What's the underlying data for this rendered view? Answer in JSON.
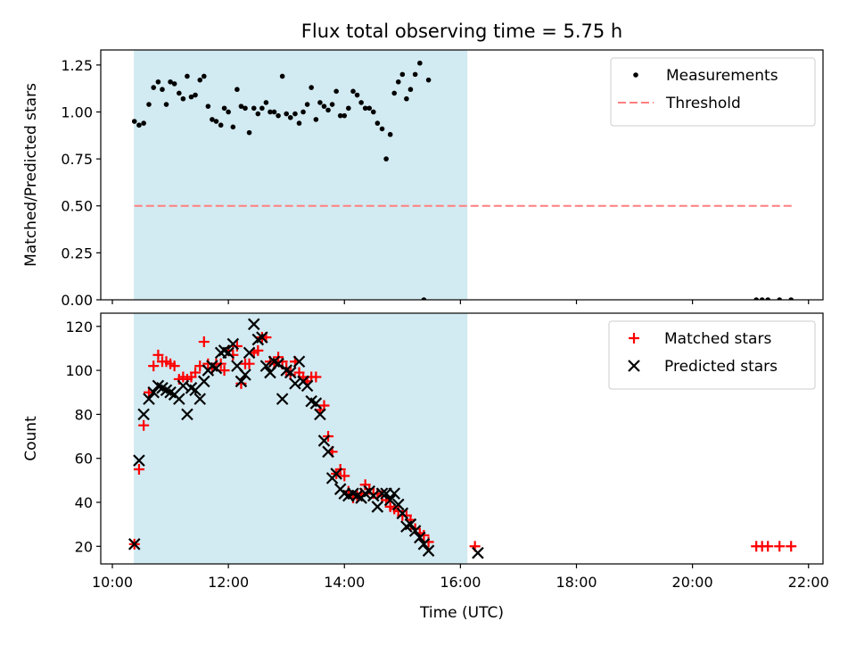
{
  "chart_data": {
    "type": "scatter",
    "title": "Flux total observing time = 5.75 h",
    "xlabel": "Time (UTC)",
    "shared_x": {
      "ticks": [
        10,
        12,
        14,
        16,
        18,
        20,
        22
      ],
      "tick_labels": [
        "10:00",
        "12:00",
        "14:00",
        "16:00",
        "18:00",
        "20:00",
        "22:00"
      ],
      "xlim": [
        9.8,
        22.25
      ]
    },
    "observing_window": {
      "start": 10.37,
      "end": 16.12,
      "color": "#add8e6"
    },
    "panels": [
      {
        "ylabel": "Matched/Predicted stars",
        "ylim": [
          0,
          1.33
        ],
        "yticks": [
          0.0,
          0.25,
          0.5,
          0.75,
          1.0,
          1.25
        ],
        "ytick_labels": [
          "0.00",
          "0.25",
          "0.50",
          "0.75",
          "1.00",
          "1.25"
        ],
        "legend_position": "top-right",
        "series": [
          {
            "name": "Measurements",
            "marker": "dot",
            "color": "#000000",
            "points": [
              [
                10.38,
                0.95
              ],
              [
                10.46,
                0.93
              ],
              [
                10.54,
                0.94
              ],
              [
                10.63,
                1.04
              ],
              [
                10.71,
                1.13
              ],
              [
                10.79,
                1.16
              ],
              [
                10.86,
                1.12
              ],
              [
                10.93,
                1.04
              ],
              [
                11.0,
                1.16
              ],
              [
                11.07,
                1.15
              ],
              [
                11.15,
                1.1
              ],
              [
                11.22,
                1.07
              ],
              [
                11.29,
                1.19
              ],
              [
                11.36,
                1.08
              ],
              [
                11.43,
                1.09
              ],
              [
                11.51,
                1.17
              ],
              [
                11.58,
                1.19
              ],
              [
                11.65,
                1.03
              ],
              [
                11.72,
                0.96
              ],
              [
                11.79,
                0.95
              ],
              [
                11.87,
                0.93
              ],
              [
                11.93,
                1.02
              ],
              [
                12.0,
                1.0
              ],
              [
                12.08,
                0.92
              ],
              [
                12.15,
                1.12
              ],
              [
                12.22,
                1.03
              ],
              [
                12.29,
                1.02
              ],
              [
                12.36,
                0.89
              ],
              [
                12.44,
                1.02
              ],
              [
                12.51,
                0.99
              ],
              [
                12.58,
                1.02
              ],
              [
                12.65,
                1.05
              ],
              [
                12.72,
                1.0
              ],
              [
                12.79,
                1.0
              ],
              [
                12.86,
                0.98
              ],
              [
                12.93,
                1.19
              ],
              [
                13.0,
                0.99
              ],
              [
                13.07,
                0.97
              ],
              [
                13.15,
                0.99
              ],
              [
                13.22,
                0.94
              ],
              [
                13.29,
                1.0
              ],
              [
                13.36,
                1.04
              ],
              [
                13.43,
                1.13
              ],
              [
                13.51,
                0.96
              ],
              [
                13.58,
                1.05
              ],
              [
                13.65,
                1.03
              ],
              [
                13.72,
                1.01
              ],
              [
                13.79,
                1.04
              ],
              [
                13.86,
                1.11
              ],
              [
                13.93,
                0.98
              ],
              [
                14.0,
                0.98
              ],
              [
                14.07,
                1.02
              ],
              [
                14.15,
                1.11
              ],
              [
                14.22,
                1.09
              ],
              [
                14.29,
                1.05
              ],
              [
                14.36,
                1.02
              ],
              [
                14.43,
                1.02
              ],
              [
                14.5,
                1.0
              ],
              [
                14.57,
                0.94
              ],
              [
                14.65,
                0.91
              ],
              [
                14.72,
                0.75
              ],
              [
                14.79,
                0.88
              ],
              [
                14.86,
                1.1
              ],
              [
                14.93,
                1.16
              ],
              [
                15.0,
                1.2
              ],
              [
                15.07,
                1.07
              ],
              [
                15.14,
                1.12
              ],
              [
                15.22,
                1.2
              ],
              [
                15.3,
                1.26
              ],
              [
                15.37,
                0.0
              ],
              [
                15.45,
                1.17
              ],
              [
                21.1,
                0.0
              ],
              [
                21.2,
                0.0
              ],
              [
                21.3,
                0.0
              ],
              [
                21.5,
                0.0
              ],
              [
                21.7,
                0.0
              ]
            ]
          },
          {
            "name": "Threshold",
            "marker": "dashed-line",
            "color": "#ff7f7f",
            "x": [
              10.38,
              21.72
            ],
            "y": [
              0.5,
              0.5
            ]
          }
        ]
      },
      {
        "ylabel": "Count",
        "ylim": [
          12,
          126
        ],
        "yticks": [
          20,
          40,
          60,
          80,
          100,
          120
        ],
        "ytick_labels": [
          "20",
          "40",
          "60",
          "80",
          "100",
          "120"
        ],
        "legend_position": "top-right",
        "series": [
          {
            "name": "Matched stars",
            "marker": "plus",
            "color": "#ff0000",
            "points": [
              [
                10.38,
                21
              ],
              [
                10.46,
                55
              ],
              [
                10.54,
                75
              ],
              [
                10.63,
                90
              ],
              [
                10.71,
                102
              ],
              [
                10.79,
                107
              ],
              [
                10.86,
                104
              ],
              [
                10.93,
                104
              ],
              [
                11.0,
                103
              ],
              [
                11.07,
                102
              ],
              [
                11.15,
                96
              ],
              [
                11.22,
                97
              ],
              [
                11.29,
                96
              ],
              [
                11.36,
                97
              ],
              [
                11.43,
                99
              ],
              [
                11.51,
                102
              ],
              [
                11.58,
                113
              ],
              [
                11.65,
                103
              ],
              [
                11.72,
                101
              ],
              [
                11.79,
                103
              ],
              [
                11.87,
                103
              ],
              [
                11.93,
                100
              ],
              [
                12.0,
                109
              ],
              [
                12.08,
                107
              ],
              [
                12.15,
                111
              ],
              [
                12.22,
                94
              ],
              [
                12.29,
                103
              ],
              [
                12.36,
                103
              ],
              [
                12.44,
                108
              ],
              [
                12.51,
                109
              ],
              [
                12.58,
                115
              ],
              [
                12.65,
                115
              ],
              [
                12.72,
                104
              ],
              [
                12.79,
                103
              ],
              [
                12.86,
                106
              ],
              [
                12.93,
                104
              ],
              [
                13.0,
                101
              ],
              [
                13.07,
                98
              ],
              [
                13.15,
                104
              ],
              [
                13.22,
                99
              ],
              [
                13.29,
                97
              ],
              [
                13.36,
                95
              ],
              [
                13.43,
                97
              ],
              [
                13.51,
                97
              ],
              [
                13.58,
                82
              ],
              [
                13.65,
                84
              ],
              [
                13.72,
                70
              ],
              [
                13.79,
                63
              ],
              [
                13.86,
                53
              ],
              [
                13.93,
                55
              ],
              [
                14.0,
                52
              ],
              [
                14.07,
                45
              ],
              [
                14.15,
                42
              ],
              [
                14.22,
                43
              ],
              [
                14.29,
                44
              ],
              [
                14.36,
                48
              ],
              [
                14.43,
                46
              ],
              [
                14.5,
                44
              ],
              [
                14.57,
                44
              ],
              [
                14.65,
                43
              ],
              [
                14.72,
                41
              ],
              [
                14.79,
                38
              ],
              [
                14.86,
                37
              ],
              [
                14.93,
                36
              ],
              [
                15.0,
                34
              ],
              [
                15.07,
                34
              ],
              [
                15.14,
                32
              ],
              [
                15.22,
                28
              ],
              [
                15.3,
                26
              ],
              [
                15.37,
                25
              ],
              [
                15.45,
                22
              ],
              [
                16.25,
                20
              ],
              [
                21.1,
                20
              ],
              [
                21.2,
                20
              ],
              [
                21.3,
                20
              ],
              [
                21.5,
                20
              ],
              [
                21.7,
                20
              ]
            ]
          },
          {
            "name": "Predicted stars",
            "marker": "x",
            "color": "#000000",
            "points": [
              [
                10.38,
                21
              ],
              [
                10.46,
                59
              ],
              [
                10.54,
                80
              ],
              [
                10.63,
                87
              ],
              [
                10.71,
                90
              ],
              [
                10.79,
                93
              ],
              [
                10.86,
                92
              ],
              [
                10.93,
                91
              ],
              [
                11.0,
                90
              ],
              [
                11.07,
                89
              ],
              [
                11.15,
                87
              ],
              [
                11.22,
                93
              ],
              [
                11.29,
                80
              ],
              [
                11.36,
                92
              ],
              [
                11.43,
                91
              ],
              [
                11.51,
                87
              ],
              [
                11.58,
                95
              ],
              [
                11.65,
                100
              ],
              [
                11.72,
                102
              ],
              [
                11.79,
                101
              ],
              [
                11.87,
                108
              ],
              [
                11.93,
                109
              ],
              [
                12.0,
                108
              ],
              [
                12.08,
                112
              ],
              [
                12.15,
                102
              ],
              [
                12.22,
                95
              ],
              [
                12.29,
                98
              ],
              [
                12.36,
                108
              ],
              [
                12.44,
                121
              ],
              [
                12.51,
                114
              ],
              [
                12.58,
                115
              ],
              [
                12.65,
                102
              ],
              [
                12.72,
                99
              ],
              [
                12.79,
                104
              ],
              [
                12.86,
                103
              ],
              [
                12.93,
                87
              ],
              [
                13.0,
                100
              ],
              [
                13.07,
                99
              ],
              [
                13.15,
                94
              ],
              [
                13.22,
                104
              ],
              [
                13.29,
                95
              ],
              [
                13.36,
                93
              ],
              [
                13.43,
                86
              ],
              [
                13.51,
                85
              ],
              [
                13.58,
                80
              ],
              [
                13.65,
                68
              ],
              [
                13.72,
                63
              ],
              [
                13.79,
                51
              ],
              [
                13.86,
                53
              ],
              [
                13.93,
                46
              ],
              [
                14.0,
                44
              ],
              [
                14.07,
                43
              ],
              [
                14.15,
                44
              ],
              [
                14.22,
                43
              ],
              [
                14.29,
                42
              ],
              [
                14.36,
                44
              ],
              [
                14.43,
                45
              ],
              [
                14.5,
                43
              ],
              [
                14.57,
                38
              ],
              [
                14.65,
                44
              ],
              [
                14.72,
                44
              ],
              [
                14.79,
                41
              ],
              [
                14.86,
                44
              ],
              [
                14.93,
                39
              ],
              [
                15.0,
                35
              ],
              [
                15.07,
                29
              ],
              [
                15.14,
                30
              ],
              [
                15.22,
                27
              ],
              [
                15.3,
                24
              ],
              [
                15.37,
                21
              ],
              [
                15.45,
                18
              ],
              [
                16.3,
                17
              ]
            ]
          }
        ]
      }
    ]
  }
}
